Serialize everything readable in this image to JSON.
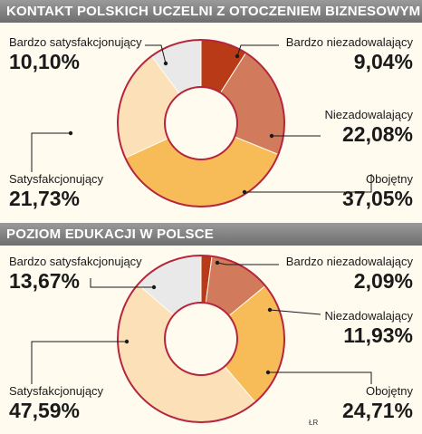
{
  "chart_data": [
    {
      "type": "donut",
      "title": "KONTAKT POLSKICH UCZELNI Z OTOCZENIEM BIZNESOWYM",
      "slices": [
        {
          "label": "Bardzo niezadowalający",
          "value": 9.04,
          "display": "9,04%",
          "color": "#b83a16"
        },
        {
          "label": "Niezadowalający",
          "value": 22.08,
          "display": "22,08%",
          "color": "#d27a5c"
        },
        {
          "label": "Obojętny",
          "value": 37.05,
          "display": "37,05%",
          "color": "#f7bc58"
        },
        {
          "label": "Satysfakcjonujący",
          "value": 21.73,
          "display": "21,73%",
          "color": "#fbe0b8"
        },
        {
          "label": "Bardzo satysfakcjonujący",
          "value": 10.1,
          "display": "10,10%",
          "color": "#e9e9e9"
        }
      ]
    },
    {
      "type": "donut",
      "title": "POZIOM EDUKACJI W POLSCE",
      "slices": [
        {
          "label": "Bardzo niezadowalający",
          "value": 2.09,
          "display": "2,09%",
          "color": "#b83a16"
        },
        {
          "label": "Niezadowalający",
          "value": 11.93,
          "display": "11,93%",
          "color": "#d27a5c"
        },
        {
          "label": "Obojętny",
          "value": 24.71,
          "display": "24,71%",
          "color": "#f7bc58"
        },
        {
          "label": "Satysfakcjonujący",
          "value": 47.59,
          "display": "47,59%",
          "color": "#fbe0b8"
        },
        {
          "label": "Bardzo satysfakcjonujący",
          "value": 13.67,
          "display": "13,67%",
          "color": "#e9e9e9"
        }
      ]
    }
  ],
  "credit": "ŁR",
  "ring_color": "#b5253d",
  "leader_color": "#1a1a1a"
}
